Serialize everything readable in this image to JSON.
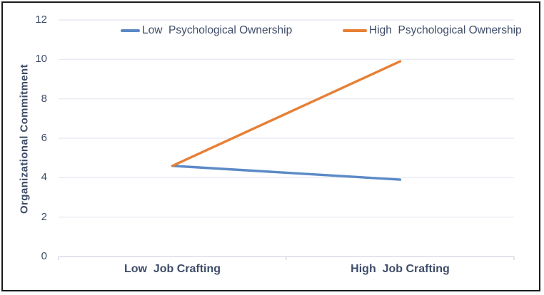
{
  "colors": {
    "text": "#3E4C68",
    "grid": "#E9EBF3",
    "axis": "#DADCE8",
    "border": "#1A1A1A",
    "background": "#FFFFFF"
  },
  "chart_data": {
    "type": "line",
    "title": "",
    "xlabel": "",
    "ylabel": "Organizational Commitment",
    "categories": [
      "Low  Job Crafting",
      "High  Job Crafting"
    ],
    "series": [
      {
        "name": "Low  Psychological Ownership",
        "color": "#5B8AC6",
        "values": [
          4.6,
          3.9
        ]
      },
      {
        "name": "High  Psychological Ownership",
        "color": "#E77F35",
        "values": [
          4.6,
          9.9
        ]
      }
    ],
    "yticks": [
      0,
      2,
      4,
      6,
      8,
      10,
      12
    ],
    "ylim": [
      0,
      12
    ],
    "grid": true,
    "legend_position": "top-inside"
  }
}
